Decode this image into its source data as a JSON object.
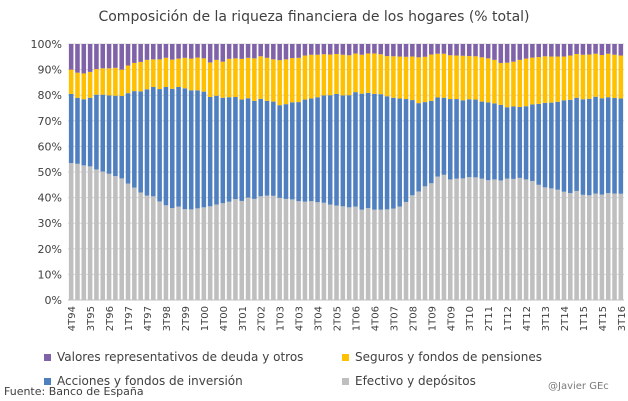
{
  "colors": {
    "efectivo": "#bfbfbf",
    "acciones": "#4f7fbf",
    "seguros": "#ffc000",
    "valores": "#7f62a8",
    "grid": "#d9d9d9",
    "axis_text": "#404040"
  },
  "footer": {
    "source": "Fuente: Banco de España",
    "credit": "@Javier GEc"
  },
  "chart_data": {
    "type": "bar",
    "stacked": true,
    "title": "Composición de la riqueza financiera de los hogares (% total)",
    "xlabel": "",
    "ylabel": "",
    "ylim": [
      0,
      100
    ],
    "yticks": [
      "0%",
      "10%",
      "20%",
      "30%",
      "40%",
      "50%",
      "60%",
      "70%",
      "80%",
      "90%",
      "100%"
    ],
    "grid": true,
    "categories": [
      "4T94",
      "1T95",
      "2T95",
      "3T95",
      "4T95",
      "1T96",
      "2T96",
      "3T96",
      "4T96",
      "1T97",
      "2T97",
      "3T97",
      "4T97",
      "1T98",
      "2T98",
      "3T98",
      "4T98",
      "1T99",
      "2T99",
      "3T99",
      "4T99",
      "1T00",
      "2T00",
      "3T00",
      "4T00",
      "1T01",
      "2T01",
      "3T01",
      "4T01",
      "1T02",
      "2T02",
      "3T02",
      "4T02",
      "1T03",
      "2T03",
      "3T03",
      "4T03",
      "1T04",
      "2T04",
      "3T04",
      "4T04",
      "1T05",
      "2T05",
      "3T05",
      "4T05",
      "1T06",
      "2T06",
      "3T06",
      "4T06",
      "1T07",
      "2T07",
      "3T07",
      "4T07",
      "1T08",
      "2T08",
      "3T08",
      "4T08",
      "1T09",
      "2T09",
      "3T09",
      "4T09",
      "1T10",
      "2T10",
      "3T10",
      "4T10",
      "1T11",
      "2T11",
      "3T11",
      "4T11",
      "1T12",
      "2T12",
      "3T12",
      "4T12",
      "1T13",
      "2T13",
      "3T13",
      "4T13",
      "1T14",
      "2T14",
      "3T14",
      "4T14",
      "1T15",
      "2T15",
      "3T15",
      "4T15",
      "1T16",
      "2T16",
      "3T16"
    ],
    "x_tick_labels": [
      "4T94",
      "3T95",
      "2T96",
      "1T97",
      "4T97",
      "3T98",
      "2T99",
      "1T00",
      "4T00",
      "3T01",
      "2T02",
      "1T03",
      "4T03",
      "3T04",
      "2T05",
      "1T06",
      "4T06",
      "3T07",
      "2T08",
      "1T09",
      "4T09",
      "3T10",
      "2T11",
      "1T12",
      "4T12",
      "3T13",
      "2T14",
      "1T15",
      "4T15",
      "3T16"
    ],
    "legend": [
      "Valores representativos de deuda y otros",
      "Seguros y fondos de pensiones",
      "Acciones y fondos de inversión",
      "Efectivo y depósitos"
    ],
    "legend_position": "bottom",
    "series": [
      {
        "name": "Efectivo y depósitos",
        "key": "efectivo",
        "values": [
          53.5,
          53.2,
          52.6,
          52.2,
          51.0,
          50.2,
          49.3,
          48.4,
          47.5,
          45.5,
          43.9,
          42.0,
          40.8,
          40.5,
          38.5,
          37.0,
          35.9,
          36.5,
          35.5,
          35.4,
          35.8,
          36.2,
          36.6,
          37.3,
          37.8,
          38.4,
          39.4,
          38.7,
          40.0,
          39.5,
          40.5,
          40.8,
          40.7,
          39.9,
          39.5,
          39.3,
          38.6,
          38.4,
          38.6,
          38.2,
          38.0,
          37.3,
          36.9,
          36.6,
          36.2,
          36.5,
          35.3,
          35.9,
          35.3,
          35.3,
          35.4,
          35.7,
          36.5,
          38.3,
          40.9,
          42.4,
          44.4,
          45.6,
          48.2,
          48.9,
          47.1,
          47.4,
          47.5,
          48.0,
          47.9,
          47.4,
          46.8,
          47.1,
          46.7,
          47.4,
          47.3,
          47.7,
          47.1,
          46.5,
          45.0,
          44.0,
          43.6,
          43.1,
          42.3,
          41.8,
          42.6,
          41.1,
          40.9,
          41.6,
          41.2,
          41.8,
          41.6,
          41.5
        ]
      },
      {
        "name": "Acciones y fondos de inversión",
        "key": "acciones",
        "values": [
          27.0,
          25.8,
          25.8,
          26.8,
          29.2,
          30.0,
          30.6,
          31.4,
          32.2,
          35.3,
          37.7,
          39.5,
          41.5,
          42.7,
          43.9,
          46.2,
          46.6,
          46.7,
          47.2,
          46.5,
          46.1,
          45.2,
          42.7,
          42.5,
          41.2,
          40.8,
          39.9,
          39.6,
          38.8,
          38.3,
          38.1,
          37.0,
          36.8,
          36.2,
          37.0,
          37.9,
          38.7,
          39.9,
          40.1,
          41.0,
          41.9,
          42.7,
          43.6,
          43.3,
          43.8,
          44.7,
          45.3,
          45.0,
          45.2,
          45.1,
          44.2,
          43.3,
          42.2,
          40.2,
          37.2,
          34.5,
          32.9,
          32.2,
          30.9,
          30.1,
          31.4,
          31.1,
          30.5,
          30.4,
          30.4,
          30.1,
          30.4,
          29.7,
          29.5,
          27.9,
          28.3,
          27.7,
          28.6,
          29.9,
          31.6,
          33.0,
          33.5,
          34.3,
          35.7,
          36.4,
          36.4,
          37.3,
          37.7,
          37.8,
          37.6,
          37.4,
          37.3,
          37.2
        ]
      },
      {
        "name": "Seguros y fondos de pensiones",
        "key": "seguros",
        "values": [
          9.5,
          9.8,
          10.1,
          10.1,
          10.0,
          10.3,
          10.6,
          10.9,
          10.3,
          10.8,
          11.0,
          11.5,
          11.5,
          10.8,
          11.6,
          11.4,
          11.4,
          11.1,
          11.9,
          12.4,
          12.8,
          13.0,
          13.5,
          14.0,
          14.1,
          15.0,
          15.1,
          15.9,
          15.8,
          16.6,
          16.6,
          16.8,
          16.5,
          17.6,
          17.5,
          17.3,
          17.3,
          17.2,
          17.1,
          16.6,
          16.1,
          15.9,
          15.6,
          15.9,
          15.6,
          15.1,
          15.2,
          15.4,
          15.8,
          15.6,
          15.7,
          16.2,
          16.4,
          16.5,
          17.0,
          17.9,
          17.7,
          18.1,
          17.1,
          17.2,
          17.1,
          17.0,
          17.4,
          16.9,
          16.9,
          17.3,
          17.2,
          17.0,
          16.4,
          17.4,
          17.5,
          18.4,
          18.6,
          18.3,
          18.3,
          18.2,
          18.0,
          17.7,
          17.1,
          17.3,
          17.1,
          17.4,
          17.3,
          16.8,
          16.9,
          17.0,
          16.9,
          16.8
        ]
      },
      {
        "name": "Valores representativos de deuda y otros",
        "key": "valores",
        "values": [
          10.0,
          11.2,
          11.5,
          10.9,
          9.8,
          9.5,
          9.5,
          9.3,
          10.0,
          8.4,
          7.4,
          7.0,
          6.2,
          6.0,
          6.0,
          5.4,
          6.1,
          5.7,
          5.4,
          5.7,
          5.3,
          5.6,
          7.2,
          6.2,
          6.9,
          5.8,
          5.6,
          5.8,
          5.4,
          5.6,
          4.8,
          5.4,
          6.0,
          6.3,
          6.0,
          5.5,
          5.4,
          4.5,
          4.2,
          4.2,
          4.0,
          4.1,
          3.9,
          4.2,
          4.4,
          3.7,
          4.2,
          3.7,
          3.7,
          4.0,
          4.7,
          4.8,
          4.9,
          5.0,
          4.9,
          5.2,
          5.0,
          4.1,
          3.8,
          3.8,
          4.4,
          4.5,
          4.6,
          4.7,
          4.8,
          5.2,
          5.6,
          6.2,
          7.4,
          7.3,
          6.9,
          6.2,
          5.7,
          5.3,
          5.1,
          4.8,
          4.9,
          4.9,
          4.9,
          4.5,
          3.9,
          4.2,
          4.1,
          3.8,
          4.3,
          3.8,
          4.2,
          4.5
        ]
      }
    ]
  }
}
